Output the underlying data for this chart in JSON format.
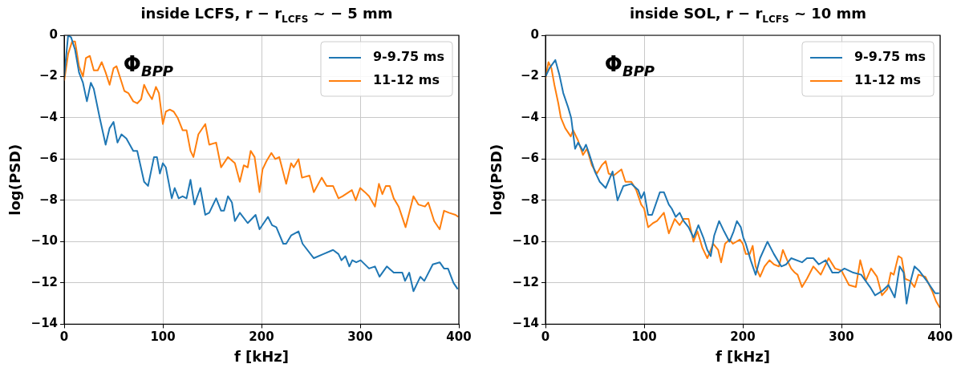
{
  "chart_data": [
    {
      "type": "line",
      "title": "inside LCFS, r − r$_{LCFS}$ ~ − 5 mm",
      "xlabel": "f [kHz]",
      "ylabel": "log(PSD)",
      "annotations": [
        "Φ$_{BPP}$"
      ],
      "xlim": [
        0,
        400
      ],
      "ylim": [
        -14,
        0
      ],
      "xticks": [
        0,
        100,
        200,
        300,
        400
      ],
      "yticks": [
        -14,
        -12,
        -10,
        -8,
        -6,
        -4,
        -2,
        0
      ],
      "grid": true,
      "legend": "top right",
      "marker": "none",
      "line_style": "solid",
      "series": [
        {
          "name": "9-9.75 ms",
          "color": "#1f77b4",
          "x": [
            0,
            4,
            7,
            11,
            15,
            19,
            23,
            27,
            30,
            36,
            42,
            46,
            50,
            54,
            58,
            63,
            70,
            74,
            81,
            85,
            91,
            94,
            97,
            100,
            103,
            109,
            112,
            116,
            120,
            124,
            128,
            132,
            138,
            143,
            147,
            154,
            159,
            162,
            166,
            170,
            173,
            178,
            186,
            194,
            198,
            206.5,
            210.7,
            215,
            222,
            225,
            230,
            237.5,
            241.6,
            253,
            262.7,
            272.5,
            278,
            281,
            285,
            289,
            292,
            296,
            300.5,
            309,
            315,
            319.6,
            327,
            334,
            342.7,
            345.5,
            349.7,
            354,
            361,
            365,
            373.6,
            380.6,
            385,
            389,
            394.6,
            398.9
          ],
          "values": [
            -2.0,
            0,
            -0.1,
            -0.7,
            -1.8,
            -2.3,
            -3.2,
            -2.3,
            -2.6,
            -4.0,
            -5.3,
            -4.5,
            -4.2,
            -5.2,
            -4.8,
            -5.0,
            -5.6,
            -5.6,
            -7.1,
            -7.3,
            -5.9,
            -5.9,
            -6.7,
            -6.2,
            -6.4,
            -7.9,
            -7.4,
            -7.9,
            -7.8,
            -7.9,
            -7.0,
            -8.2,
            -7.4,
            -8.7,
            -8.6,
            -7.9,
            -8.5,
            -8.5,
            -7.8,
            -8.1,
            -9.0,
            -8.6,
            -9.1,
            -8.7,
            -9.4,
            -8.8,
            -9.2,
            -9.3,
            -10.1,
            -10.1,
            -9.7,
            -9.5,
            -10.1,
            -10.8,
            -10.6,
            -10.4,
            -10.6,
            -10.9,
            -10.7,
            -11.2,
            -10.9,
            -11.0,
            -10.9,
            -11.3,
            -11.2,
            -11.7,
            -11.2,
            -11.5,
            -11.5,
            -11.9,
            -11.5,
            -12.4,
            -11.7,
            -11.9,
            -11.1,
            -11.0,
            -11.3,
            -11.3,
            -12.0,
            -12.3
          ]
        },
        {
          "name": "11-12 ms",
          "color": "#ff7f0e",
          "x": [
            0,
            4,
            8,
            11,
            15,
            19,
            22,
            26,
            30,
            34,
            38,
            42,
            46,
            50,
            53,
            57,
            61,
            65,
            70,
            74,
            78,
            81,
            85,
            89,
            93,
            96,
            100,
            103,
            107,
            111,
            115,
            120,
            124,
            128,
            131,
            136,
            143,
            147,
            154,
            159,
            166,
            173,
            178,
            182,
            186,
            189,
            193,
            198,
            201,
            205,
            210,
            214,
            218,
            225,
            230,
            232.6,
            237.5,
            241,
            248.6,
            253,
            261,
            266,
            272.5,
            278,
            282,
            291.6,
            295.5,
            300,
            304.8,
            309,
            315,
            319,
            322.5,
            326,
            330,
            334,
            339,
            346,
            354,
            359,
            365.7,
            369,
            375,
            380.6,
            385,
            390,
            396.6,
            399.4
          ],
          "values": [
            -2.2,
            -0.9,
            -0.3,
            -0.3,
            -1.5,
            -2.0,
            -1.1,
            -1.0,
            -1.7,
            -1.7,
            -1.3,
            -1.8,
            -2.4,
            -1.6,
            -1.5,
            -2.1,
            -2.7,
            -2.8,
            -3.2,
            -3.3,
            -3.1,
            -2.4,
            -2.8,
            -3.1,
            -2.5,
            -2.8,
            -4.3,
            -3.7,
            -3.6,
            -3.7,
            -4.0,
            -4.6,
            -4.6,
            -5.6,
            -5.9,
            -4.8,
            -4.3,
            -5.3,
            -5.2,
            -6.4,
            -5.9,
            -6.2,
            -7.1,
            -6.3,
            -6.4,
            -5.6,
            -5.9,
            -7.6,
            -6.5,
            -6.1,
            -5.7,
            -6.0,
            -5.9,
            -7.2,
            -6.2,
            -6.4,
            -6.0,
            -6.9,
            -6.8,
            -7.6,
            -6.9,
            -7.3,
            -7.3,
            -7.9,
            -7.8,
            -7.5,
            -8.0,
            -7.4,
            -7.6,
            -7.8,
            -8.3,
            -7.2,
            -7.7,
            -7.3,
            -7.3,
            -7.9,
            -8.3,
            -9.3,
            -7.8,
            -8.2,
            -8.3,
            -8.1,
            -9.0,
            -9.4,
            -8.5,
            -8.6,
            -8.7,
            -8.8
          ]
        }
      ]
    },
    {
      "type": "line",
      "title": "inside SOL, r − r$_{LCFS}$ ~ 10 mm",
      "xlabel": "f [kHz]",
      "ylabel": "log(PSD)",
      "annotations": [
        "Φ$_{BPP}$"
      ],
      "xlim": [
        0,
        400
      ],
      "ylim": [
        -14,
        0
      ],
      "xticks": [
        0,
        100,
        200,
        300,
        400
      ],
      "yticks": [
        -14,
        -12,
        -10,
        -8,
        -6,
        -4,
        -2,
        0
      ],
      "grid": true,
      "legend": "top right",
      "marker": "none",
      "line_style": "solid",
      "series": [
        {
          "name": "9-9.75 ms",
          "color": "#1f77b4",
          "x": [
            0,
            4,
            10,
            14,
            18,
            23,
            26,
            30,
            33,
            38,
            41,
            44,
            50,
            55,
            61,
            68,
            73,
            79,
            87,
            94,
            97,
            100,
            104,
            108,
            116,
            120,
            125,
            128,
            132,
            136,
            140,
            145,
            150,
            155,
            160,
            164,
            167.5,
            171,
            176,
            181,
            186.5,
            190.7,
            194,
            198,
            200.5,
            203,
            208,
            213,
            217.5,
            225,
            231.5,
            239,
            244,
            249,
            260,
            265,
            271.5,
            277,
            284,
            290.7,
            297,
            303,
            312,
            320,
            329,
            334,
            341,
            347.6,
            354,
            359,
            363,
            366,
            369.6,
            374,
            378.6,
            386.5,
            390.7,
            395,
            399
          ],
          "values": [
            -2.0,
            -1.6,
            -1.2,
            -1.9,
            -2.8,
            -3.5,
            -4.0,
            -5.5,
            -5.2,
            -5.6,
            -5.3,
            -5.7,
            -6.6,
            -7.1,
            -7.4,
            -6.6,
            -8.0,
            -7.3,
            -7.2,
            -7.5,
            -7.9,
            -7.6,
            -8.7,
            -8.7,
            -7.6,
            -7.6,
            -8.2,
            -8.4,
            -8.8,
            -8.6,
            -9.0,
            -9.3,
            -9.8,
            -9.2,
            -9.8,
            -10.4,
            -10.7,
            -9.7,
            -9.0,
            -9.5,
            -10.0,
            -9.5,
            -9.0,
            -9.3,
            -9.8,
            -10.1,
            -10.9,
            -11.6,
            -10.8,
            -10.0,
            -10.6,
            -11.2,
            -11.1,
            -10.8,
            -11.0,
            -10.8,
            -10.8,
            -11.1,
            -10.9,
            -11.5,
            -11.5,
            -11.3,
            -11.5,
            -11.6,
            -12.2,
            -12.6,
            -12.4,
            -12.1,
            -12.7,
            -11.2,
            -11.5,
            -13.0,
            -12.0,
            -11.2,
            -11.4,
            -11.9,
            -12.2,
            -12.5,
            -12.5
          ]
        },
        {
          "name": "11-12 ms",
          "color": "#ff7f0e",
          "x": [
            0,
            3,
            6,
            9,
            13,
            15.6,
            20,
            25.6,
            28,
            33,
            38,
            42,
            47,
            52,
            57,
            61,
            64,
            69,
            77,
            81,
            87,
            92,
            97,
            100,
            104,
            109,
            113,
            120,
            125,
            131,
            136,
            140,
            145,
            150,
            154,
            159,
            164,
            170,
            175,
            178,
            182,
            186.5,
            190,
            197,
            200,
            203,
            207,
            210,
            213,
            217.5,
            222,
            227,
            231.5,
            236.6,
            240.6,
            245,
            249,
            252.7,
            255.5,
            260,
            265,
            271.5,
            279,
            287,
            293.5,
            300,
            307.6,
            314.6,
            319,
            324.5,
            330,
            336,
            341,
            346.5,
            350,
            353,
            357.6,
            361,
            364.5,
            369.6,
            374,
            378,
            385,
            392,
            396,
            399.7
          ],
          "values": [
            -2.1,
            -1.3,
            -1.6,
            -2.4,
            -3.3,
            -4.0,
            -4.5,
            -4.9,
            -4.6,
            -5.1,
            -5.8,
            -5.5,
            -6.3,
            -6.7,
            -6.3,
            -6.1,
            -6.7,
            -6.8,
            -6.5,
            -7.1,
            -7.1,
            -7.5,
            -8.2,
            -8.4,
            -9.3,
            -9.1,
            -9.0,
            -8.6,
            -9.6,
            -8.9,
            -9.2,
            -8.9,
            -8.9,
            -10.0,
            -9.5,
            -10.3,
            -10.8,
            -10.1,
            -10.4,
            -11.0,
            -10.1,
            -9.9,
            -10.1,
            -9.9,
            -10.1,
            -10.6,
            -10.6,
            -10.2,
            -11.2,
            -11.7,
            -11.2,
            -10.9,
            -11.1,
            -11.2,
            -10.4,
            -10.9,
            -11.3,
            -11.5,
            -11.6,
            -12.2,
            -11.8,
            -11.2,
            -11.6,
            -10.8,
            -11.3,
            -11.4,
            -12.1,
            -12.2,
            -10.9,
            -11.9,
            -11.3,
            -11.7,
            -12.6,
            -12.3,
            -11.5,
            -11.6,
            -10.7,
            -10.8,
            -11.8,
            -11.9,
            -12.2,
            -11.6,
            -11.7,
            -12.4,
            -12.9,
            -13.2
          ]
        }
      ]
    }
  ]
}
